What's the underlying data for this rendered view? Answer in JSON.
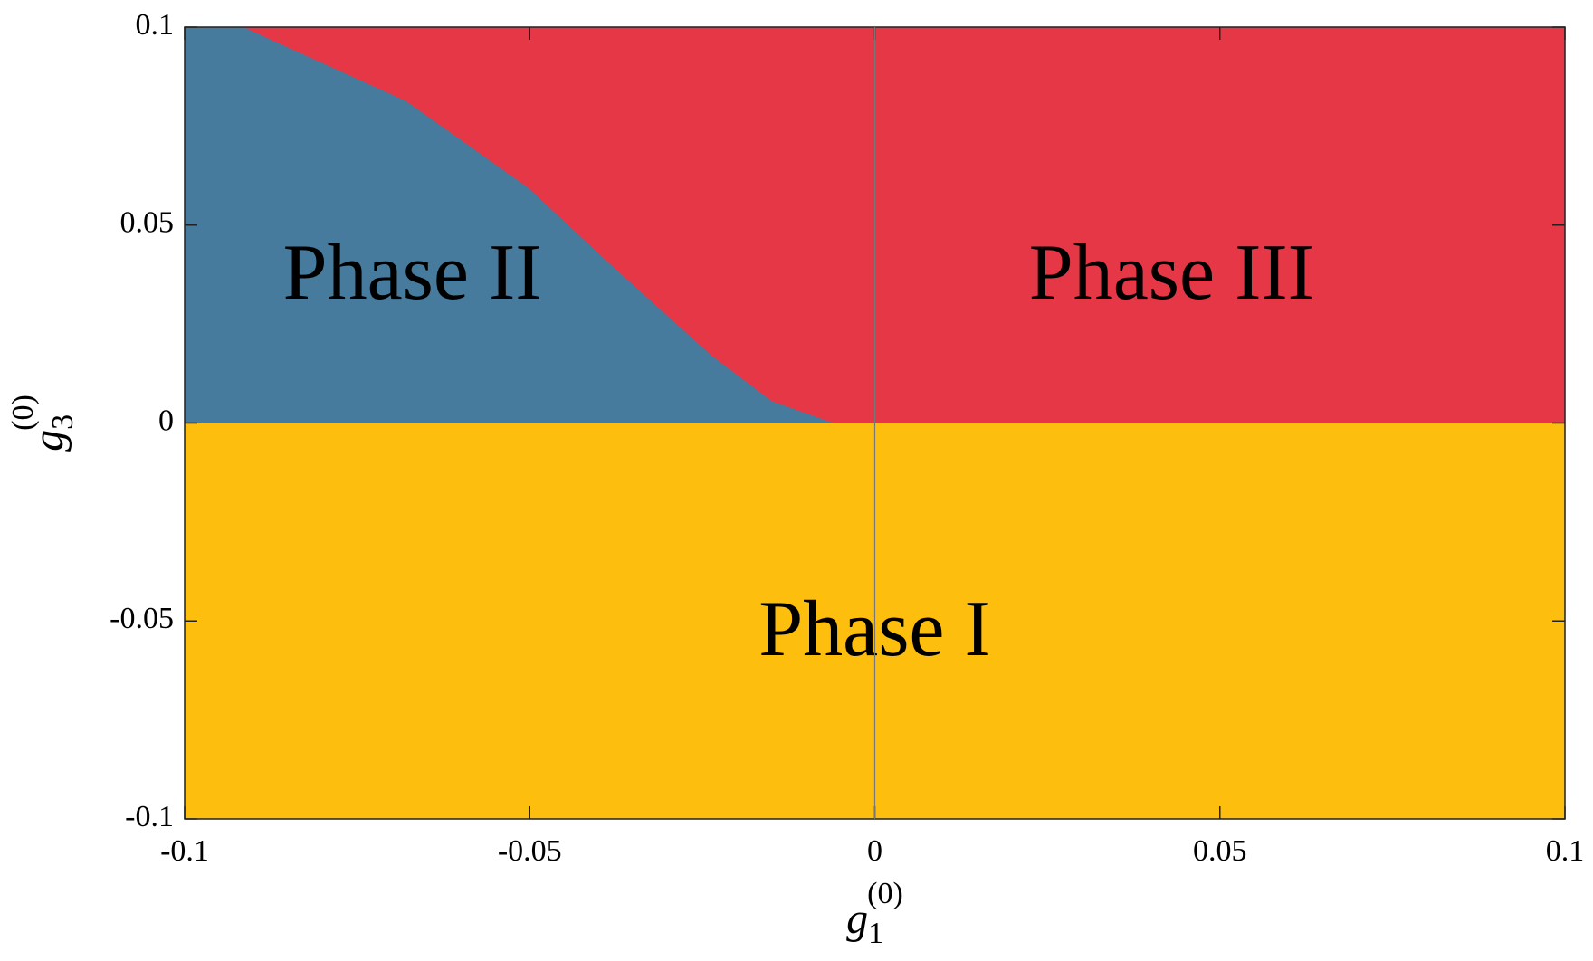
{
  "chart_data": {
    "type": "phase",
    "xlabel": {
      "base": "g",
      "sub": "1",
      "sup": "(0)"
    },
    "ylabel": {
      "base": "g",
      "sub": "3",
      "sup": "(0)"
    },
    "xlim": [
      -0.1,
      0.1
    ],
    "ylim": [
      -0.1,
      0.1
    ],
    "xticks": [
      -0.1,
      -0.05,
      0,
      0.05,
      0.1
    ],
    "yticks": [
      -0.1,
      -0.05,
      0,
      0.05,
      0.1
    ],
    "g3_boundary": 0,
    "boundary": {
      "x": [
        -0.0915,
        -0.0679,
        -0.0502,
        -0.0384,
        -0.0237,
        -0.0149,
        -0.006
      ],
      "y": [
        0.1,
        0.0813,
        0.0594,
        0.0402,
        0.0171,
        0.0055,
        0
      ]
    },
    "regions": [
      {
        "name": "Phase I",
        "color": "#fdbe0e"
      },
      {
        "name": "Phase II",
        "color": "#477b9d"
      },
      {
        "name": "Phase III",
        "color": "#e63746"
      }
    ]
  }
}
